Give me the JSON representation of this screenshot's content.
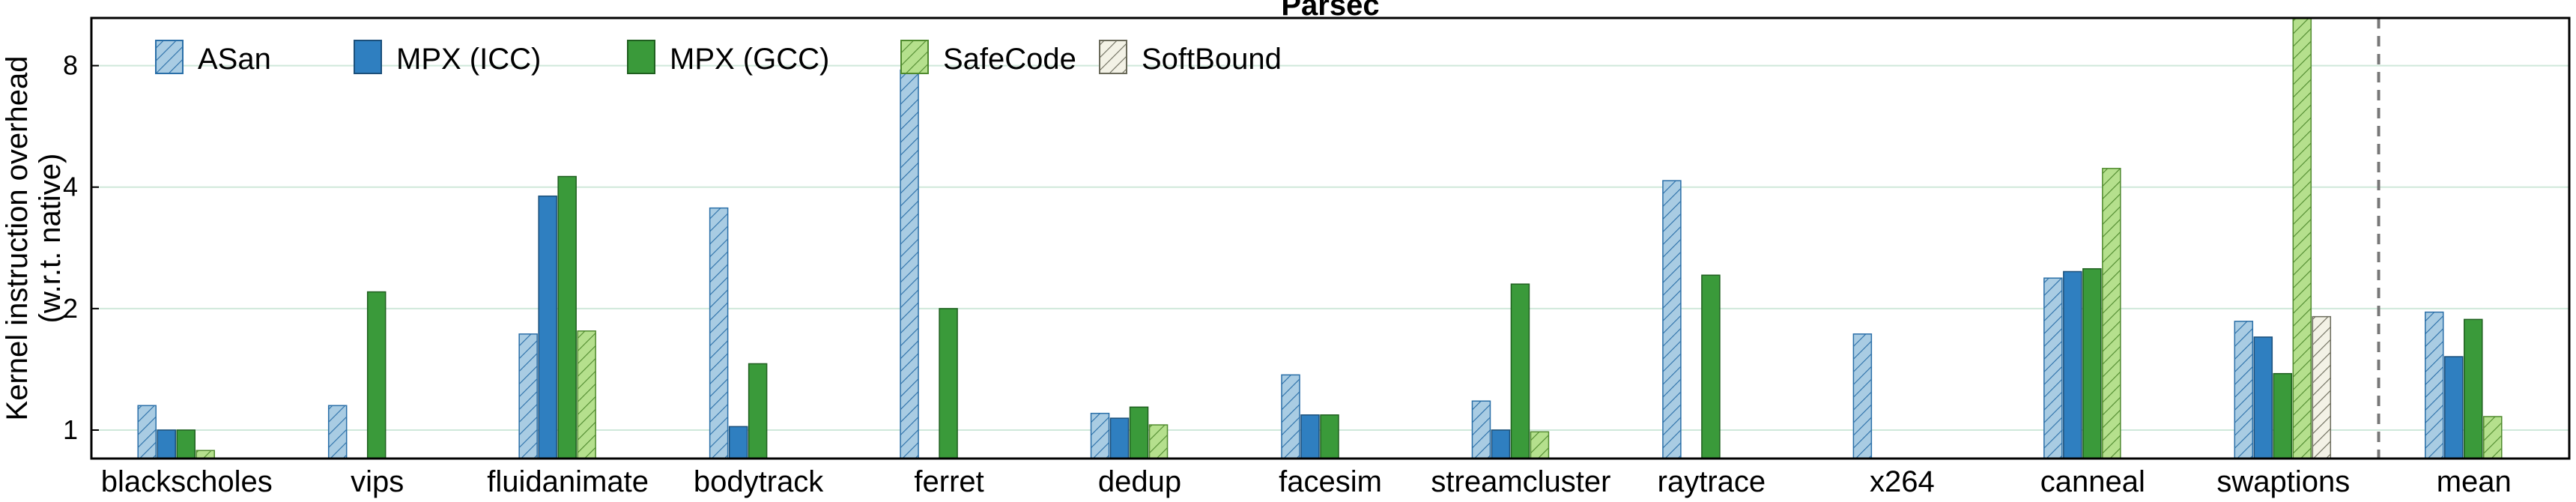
{
  "chart_data": {
    "type": "bar",
    "title": "Parsec",
    "ylabel_lines": [
      "Kernel instruction overhead",
      "(w.r.t. native)"
    ],
    "yscale": "log2",
    "ylim": [
      0.85,
      10.5
    ],
    "yticks": [
      1,
      2,
      4,
      8
    ],
    "grid": "horizontal",
    "legend_position": "top-left",
    "categories": [
      "blackscholes",
      "vips",
      "fluidanimate",
      "bodytrack",
      "ferret",
      "dedup",
      "facesim",
      "streamcluster",
      "raytrace",
      "x264",
      "canneal",
      "swaptions",
      "mean"
    ],
    "separator_before": "mean",
    "series": [
      {
        "name": "ASan",
        "color": "#a9cce3",
        "stroke": "#2a6fa8",
        "hatch": true,
        "values": [
          1.15,
          1.15,
          1.73,
          3.55,
          7.8,
          1.1,
          1.37,
          1.18,
          4.15,
          1.73,
          2.38,
          1.86,
          1.96
        ]
      },
      {
        "name": "MPX (ICC)",
        "color": "#2f7fc0",
        "stroke": "#1b4f7a",
        "hatch": false,
        "values": [
          1.0,
          null,
          3.8,
          1.02,
          null,
          1.07,
          1.09,
          1.0,
          null,
          null,
          2.47,
          1.7,
          1.52
        ]
      },
      {
        "name": "MPX (GCC)",
        "color": "#3a9a3a",
        "stroke": "#1f5f1f",
        "hatch": false,
        "values": [
          1.0,
          2.2,
          4.25,
          1.46,
          2.0,
          1.14,
          1.09,
          2.3,
          2.42,
          null,
          2.51,
          1.38,
          1.88
        ]
      },
      {
        "name": "SafeCode",
        "color": "#b5e08d",
        "stroke": "#4f8a2e",
        "hatch": true,
        "values": [
          0.89,
          null,
          1.76,
          null,
          null,
          1.03,
          null,
          0.99,
          null,
          null,
          4.45,
          10.5,
          1.08
        ]
      },
      {
        "name": "SoftBound",
        "color": "#f3f2e6",
        "stroke": "#6a6a5a",
        "hatch": true,
        "values": [
          null,
          null,
          null,
          null,
          null,
          null,
          null,
          null,
          null,
          null,
          null,
          1.91,
          null
        ]
      }
    ]
  }
}
